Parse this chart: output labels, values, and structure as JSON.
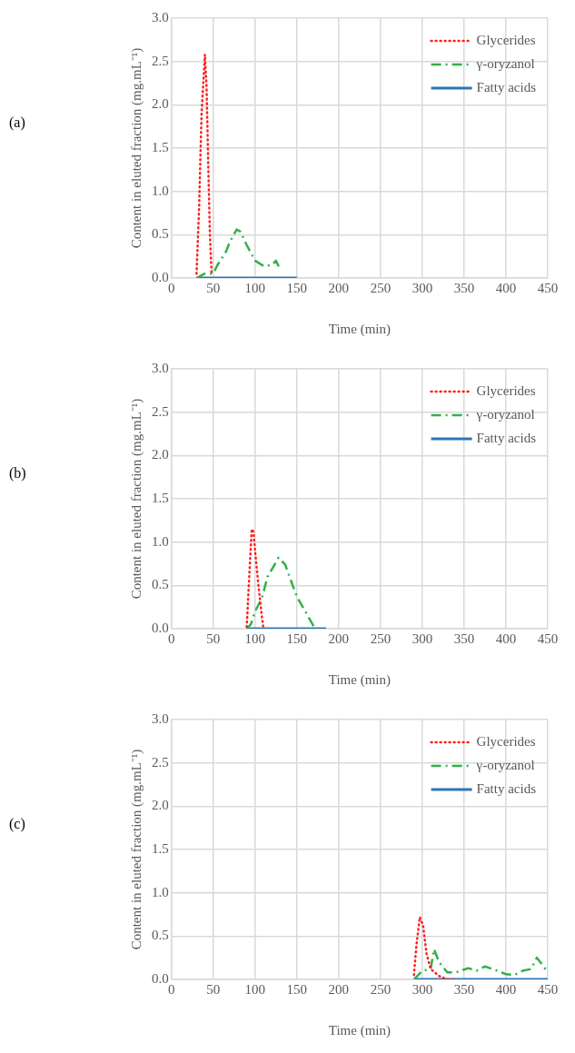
{
  "chart_data": [
    {
      "type": "line",
      "annotations": [
        "(a)"
      ],
      "xlabel": "Time (min)",
      "ylabel": "Content in eluted fraction (mg.mL⁻¹)",
      "xlim": [
        0,
        450
      ],
      "xticks": [
        0,
        50,
        100,
        150,
        200,
        250,
        300,
        350,
        400,
        450
      ],
      "ylim": [
        0,
        3
      ],
      "yticks": [
        {
          "value": 0,
          "label": "0.0"
        },
        {
          "value": 0.5,
          "label": "0.5"
        },
        {
          "value": 1,
          "label": "1.0"
        },
        {
          "value": 1.5,
          "label": "1.5"
        },
        {
          "value": 2,
          "label": "2.0"
        },
        {
          "value": 2.5,
          "label": "2.5"
        },
        {
          "value": 3,
          "label": "3.0"
        }
      ],
      "grid": true,
      "legend": "top right",
      "series": [
        {
          "name": "Glycerides",
          "color": "#ff2020",
          "line_style": "dotted",
          "x": [
            30,
            33,
            36,
            40,
            42,
            44,
            46,
            48
          ],
          "values": [
            0.05,
            0.8,
            1.9,
            2.58,
            2.2,
            1.3,
            0.5,
            0.05
          ]
        },
        {
          "name": "γ-oryzanol",
          "color": "#33b04a",
          "line_style": "dashed",
          "x": [
            30,
            40,
            50,
            55,
            65,
            70,
            78,
            82,
            90,
            100,
            110,
            120,
            125,
            130
          ],
          "values": [
            0,
            0.05,
            0.05,
            0.15,
            0.3,
            0.42,
            0.56,
            0.54,
            0.38,
            0.2,
            0.14,
            0.15,
            0.2,
            0.1
          ]
        },
        {
          "name": "Fatty acids",
          "color": "#2e75b6",
          "line_style": "solid",
          "x": [
            30,
            150
          ],
          "values": [
            0,
            0
          ]
        }
      ]
    },
    {
      "type": "line",
      "annotations": [
        "(b)"
      ],
      "xlabel": "Time (min)",
      "ylabel": "Content in eluted fraction (mg.mL⁻¹)",
      "xlim": [
        0,
        450
      ],
      "xticks": [
        0,
        50,
        100,
        150,
        200,
        250,
        300,
        350,
        400,
        450
      ],
      "ylim": [
        0,
        3
      ],
      "yticks": [
        {
          "value": 0,
          "label": "0.0"
        },
        {
          "value": 0.5,
          "label": "0.5"
        },
        {
          "value": 1,
          "label": "1.0"
        },
        {
          "value": 1.5,
          "label": "1.5"
        },
        {
          "value": 2,
          "label": "2.0"
        },
        {
          "value": 2.5,
          "label": "2.5"
        },
        {
          "value": 3,
          "label": "3.0"
        }
      ],
      "grid": true,
      "legend": "top right",
      "series": [
        {
          "name": "Glycerides",
          "color": "#ff2020",
          "line_style": "dotted",
          "x": [
            90,
            93,
            96,
            98,
            100,
            104,
            108,
            110
          ],
          "values": [
            0.02,
            0.6,
            1.15,
            1.12,
            0.9,
            0.5,
            0.15,
            0
          ]
        },
        {
          "name": "γ-oryzanol",
          "color": "#33b04a",
          "line_style": "dashed",
          "x": [
            90,
            95,
            100,
            108,
            115,
            128,
            136,
            145,
            150,
            160,
            170,
            175
          ],
          "values": [
            0,
            0.05,
            0.2,
            0.35,
            0.6,
            0.82,
            0.74,
            0.5,
            0.37,
            0.2,
            0.03,
            0
          ]
        },
        {
          "name": "Fatty acids",
          "color": "#2e75b6",
          "line_style": "solid",
          "x": [
            90,
            185
          ],
          "values": [
            0,
            0
          ]
        }
      ]
    },
    {
      "type": "line",
      "annotations": [
        "(c)"
      ],
      "xlabel": "Time (min)",
      "ylabel": "Content in eluted fraction (mg.mL⁻¹)",
      "xlim": [
        0,
        450
      ],
      "xticks": [
        0,
        50,
        100,
        150,
        200,
        250,
        300,
        350,
        400,
        450
      ],
      "ylim": [
        0,
        3
      ],
      "yticks": [
        {
          "value": 0,
          "label": "0.0"
        },
        {
          "value": 0.5,
          "label": "0.5"
        },
        {
          "value": 1,
          "label": "1.0"
        },
        {
          "value": 1.5,
          "label": "1.5"
        },
        {
          "value": 2,
          "label": "2.0"
        },
        {
          "value": 2.5,
          "label": "2.5"
        },
        {
          "value": 3,
          "label": "3.0"
        }
      ],
      "grid": true,
      "legend": "top right",
      "series": [
        {
          "name": "Glycerides",
          "color": "#ff2020",
          "line_style": "dotted",
          "x": [
            290,
            293,
            297,
            301,
            305,
            310,
            320,
            330,
            340
          ],
          "values": [
            0.05,
            0.4,
            0.72,
            0.62,
            0.3,
            0.12,
            0.04,
            0,
            0
          ]
        },
        {
          "name": "γ-oryzanol",
          "color": "#33b04a",
          "line_style": "dashed",
          "x": [
            290,
            300,
            310,
            314,
            320,
            330,
            340,
            355,
            365,
            375,
            390,
            400,
            410,
            420,
            430,
            437,
            445,
            450
          ],
          "values": [
            0,
            0.1,
            0.12,
            0.35,
            0.2,
            0.08,
            0.08,
            0.13,
            0.1,
            0.15,
            0.1,
            0.06,
            0.05,
            0.1,
            0.12,
            0.25,
            0.15,
            0.08
          ]
        },
        {
          "name": "Fatty acids",
          "color": "#2e75b6",
          "line_style": "solid",
          "x": [
            290,
            450
          ],
          "values": [
            0,
            0
          ]
        }
      ]
    }
  ]
}
